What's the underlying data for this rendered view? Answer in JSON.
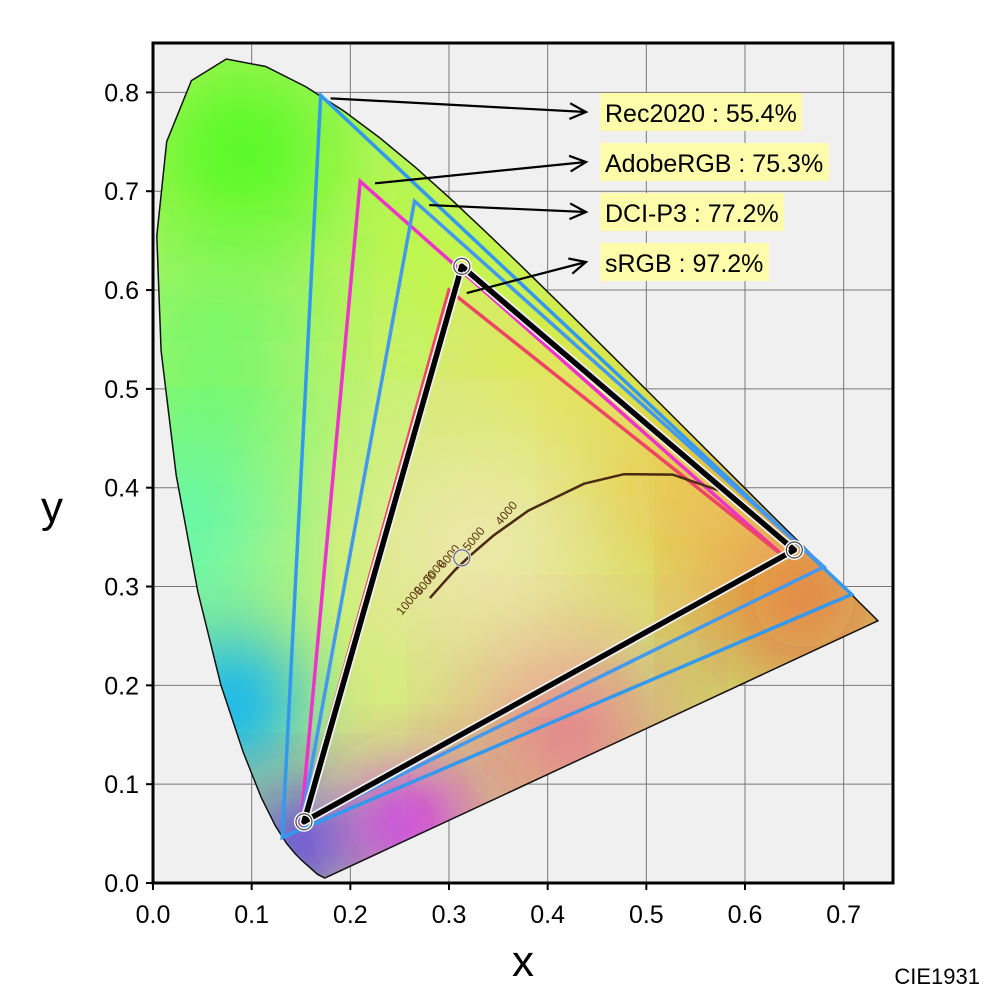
{
  "chart_data": {
    "type": "scatter",
    "xlabel": "x",
    "ylabel": "y",
    "xlim": [
      0.0,
      0.75
    ],
    "ylim": [
      0.0,
      0.85
    ],
    "x_ticks": [
      "0.0",
      "0.1",
      "0.2",
      "0.3",
      "0.4",
      "0.5",
      "0.6",
      "0.7"
    ],
    "y_ticks": [
      "0.0",
      "0.1",
      "0.2",
      "0.3",
      "0.4",
      "0.5",
      "0.6",
      "0.7",
      "0.8"
    ],
    "grid": true,
    "note": "CIE1931",
    "spectral_locus": [
      [
        0.1741,
        0.005
      ],
      [
        0.1666,
        0.0089
      ],
      [
        0.151,
        0.0227
      ],
      [
        0.144,
        0.0297
      ],
      [
        0.1355,
        0.0399
      ],
      [
        0.1241,
        0.0578
      ],
      [
        0.1096,
        0.0868
      ],
      [
        0.0913,
        0.1327
      ],
      [
        0.0687,
        0.2007
      ],
      [
        0.0454,
        0.295
      ],
      [
        0.0235,
        0.4127
      ],
      [
        0.0082,
        0.5384
      ],
      [
        0.0039,
        0.6548
      ],
      [
        0.0139,
        0.7502
      ],
      [
        0.0389,
        0.812
      ],
      [
        0.0743,
        0.8338
      ],
      [
        0.1142,
        0.8262
      ],
      [
        0.1547,
        0.8059
      ],
      [
        0.1929,
        0.7816
      ],
      [
        0.2296,
        0.7543
      ],
      [
        0.2658,
        0.7243
      ],
      [
        0.3016,
        0.6923
      ],
      [
        0.3373,
        0.6589
      ],
      [
        0.3731,
        0.6245
      ],
      [
        0.4087,
        0.5896
      ],
      [
        0.4441,
        0.5547
      ],
      [
        0.4788,
        0.5202
      ],
      [
        0.5125,
        0.4866
      ],
      [
        0.5448,
        0.4544
      ],
      [
        0.5752,
        0.4242
      ],
      [
        0.6029,
        0.3965
      ],
      [
        0.627,
        0.3725
      ],
      [
        0.6482,
        0.3514
      ],
      [
        0.6658,
        0.334
      ],
      [
        0.6801,
        0.3197
      ],
      [
        0.6915,
        0.3083
      ],
      [
        0.7006,
        0.2993
      ],
      [
        0.7079,
        0.292
      ],
      [
        0.714,
        0.2859
      ],
      [
        0.719,
        0.2809
      ],
      [
        0.723,
        0.277
      ],
      [
        0.726,
        0.274
      ],
      [
        0.7283,
        0.2717
      ],
      [
        0.73,
        0.27
      ],
      [
        0.7347,
        0.2653
      ]
    ],
    "series": [
      {
        "name": "Rec2020",
        "coverage": "55.4%",
        "color": "#3399ee",
        "points": [
          [
            0.708,
            0.292
          ],
          [
            0.17,
            0.797
          ],
          [
            0.131,
            0.046
          ]
        ]
      },
      {
        "name": "AdobeRGB",
        "coverage": "75.3%",
        "color": "#ee33cc",
        "points": [
          [
            0.64,
            0.33
          ],
          [
            0.21,
            0.71
          ],
          [
            0.15,
            0.06
          ]
        ]
      },
      {
        "name": "DCI-P3",
        "coverage": "77.2%",
        "color": "#4499ee",
        "points": [
          [
            0.68,
            0.32
          ],
          [
            0.265,
            0.69
          ],
          [
            0.15,
            0.06
          ]
        ]
      },
      {
        "name": "sRGB",
        "coverage": "97.2%",
        "color": "#ee4466",
        "points": [
          [
            0.64,
            0.33
          ],
          [
            0.3,
            0.6
          ],
          [
            0.15,
            0.06
          ]
        ]
      }
    ],
    "measured_gamut": {
      "color": "#000000",
      "points": [
        [
          0.65,
          0.337
        ],
        [
          0.313,
          0.624
        ],
        [
          0.153,
          0.062
        ]
      ]
    },
    "white_point": [
      0.313,
      0.329
    ],
    "planckian_locus": [
      [
        0.2806,
        0.2883
      ],
      [
        0.2952,
        0.3048
      ],
      [
        0.3063,
        0.3169
      ],
      [
        0.3221,
        0.3318
      ],
      [
        0.3451,
        0.3516
      ],
      [
        0.3805,
        0.3768
      ],
      [
        0.4369,
        0.4041
      ],
      [
        0.4773,
        0.4137
      ],
      [
        0.5266,
        0.4133
      ],
      [
        0.5857,
        0.3931
      ]
    ],
    "cct_labels": [
      {
        "text": "10000",
        "x": 0.282,
        "y": 0.29
      },
      {
        "text": "8000",
        "x": 0.296,
        "y": 0.305
      },
      {
        "text": "7000",
        "x": 0.305,
        "y": 0.317
      },
      {
        "text": "6000",
        "x": 0.32,
        "y": 0.332
      },
      {
        "text": "5000",
        "x": 0.345,
        "y": 0.35
      },
      {
        "text": "4000",
        "x": 0.378,
        "y": 0.376
      }
    ],
    "legend": [
      {
        "label": "Rec2020 : 55.4%"
      },
      {
        "label": "AdobeRGB : 75.3%"
      },
      {
        "label": "DCI-P3 : 77.2%"
      },
      {
        "label": "sRGB : 97.2%"
      }
    ]
  }
}
